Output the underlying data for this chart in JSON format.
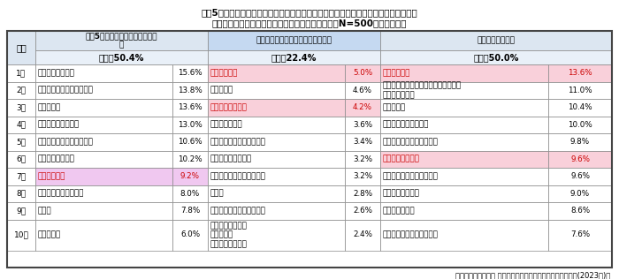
{
  "title_line1": "直近5年程度で、家事を楽にするために取り入れた、新たに購入した家電や設備の有無",
  "title_line2": "また、現在欲しいと思っている家電や設備の有無（N=500・複数回答）",
  "footer": "積水ハウス株式会社 住生活研究所「年始に向けた大掃除調査(2023年)」",
  "col1_header": "直近5年程度で購入した家電や設\n備",
  "col2_header": "これから購入予定のある家電や設備",
  "col3_header": "欲しい家電や設備",
  "col1_sub": "ある：50.4%",
  "col2_sub": "ある：22.4%",
  "col3_sub": "ある：50.0%",
  "rank_label": "順位",
  "rows": [
    {
      "rank": "1位",
      "col1_item": "コードレス掃除機",
      "col1_val": "15.6%",
      "col2_item": "掃除ロボット",
      "col2_val": "5.0%",
      "col3_item": "掃除ロボット",
      "col3_val": "13.6%",
      "col1_highlight": false,
      "col2_highlight": true,
      "col3_highlight": true
    },
    {
      "rank": "2位",
      "col1_item": "自動洗浄機能付きエアコン",
      "col1_val": "13.8%",
      "col2_item": "高圧洗浄機",
      "col2_val": "4.6%",
      "col3_item": "お掃除不要（自動洗浄機能付きなど）\nのレンジフード",
      "col3_val": "11.0%",
      "col1_highlight": false,
      "col2_highlight": false,
      "col3_highlight": false
    },
    {
      "rank": "3位",
      "col1_item": "食器洗浄機",
      "col1_val": "13.6%",
      "col2_item": "コードレス掃除機",
      "col2_val": "4.2%",
      "col3_item": "高圧洗浄機",
      "col3_val": "10.4%",
      "col1_highlight": false,
      "col2_highlight": true,
      "col3_highlight": false
    },
    {
      "rank": "4位",
      "col1_item": "スティック型掃除機",
      "col1_val": "13.0%",
      "col2_item": "布団クリーナー",
      "col2_val": "3.6%",
      "col3_item": "汚れが付きにくい便器",
      "col3_val": "10.0%",
      "col1_highlight": false,
      "col2_highlight": false,
      "col3_highlight": false
    },
    {
      "rank": "5位",
      "col1_item": "ドラム式乾燥機付き洗濯機",
      "col1_val": "10.6%",
      "col2_item": "自動洗浄機能付きエアコン",
      "col2_val": "3.4%",
      "col3_item": "掃除の回数が減るバスタブ",
      "col3_val": "9.8%",
      "col1_highlight": false,
      "col2_highlight": false,
      "col3_highlight": false
    },
    {
      "rank": "6位",
      "col1_item": "サーキュレーター",
      "col1_val": "10.2%",
      "col2_item": "スティック型掃除機",
      "col2_val": "3.2%",
      "col3_item": "コードレス掃除機",
      "col3_val": "9.6%",
      "col1_highlight": false,
      "col2_highlight": false,
      "col3_highlight": true
    },
    {
      "rank": "7位",
      "col1_item": "掃除ロボット",
      "col1_val": "9.2%",
      "col2_item": "自動調理鍋（電気圧力鍋）",
      "col2_val": "3.2%",
      "col3_item": "掃除の回数が減る浴室の床",
      "col3_val": "9.6%",
      "col1_highlight": true,
      "col2_highlight": false,
      "col3_highlight": false
    },
    {
      "rank": "8位",
      "col1_item": "汚れが付きにくい便器",
      "col1_val": "8.0%",
      "col2_item": "除湿器",
      "col2_val": "2.8%",
      "col3_item": "雑巾がけロボット",
      "col3_val": "9.0%",
      "col1_highlight": false,
      "col2_highlight": false,
      "col3_highlight": false
    },
    {
      "rank": "9位",
      "col1_item": "除湿器",
      "col1_val": "7.8%",
      "col2_item": "ドラム式乾燥機付き洗濯機",
      "col2_val": "2.6%",
      "col3_item": "布団クリーナー",
      "col3_val": "8.6%",
      "col1_highlight": false,
      "col2_highlight": false,
      "col3_highlight": false
    },
    {
      "rank": "10位",
      "col1_item": "高圧洗浄機",
      "col1_val": "6.0%",
      "col2_item": "雑巾がけロボット\n食器洗浄機\nサーキュレーター",
      "col2_val": "2.4%",
      "col3_item": "自動洗浄機能付きエアコン",
      "col3_val": "7.6%",
      "col1_highlight": false,
      "col2_highlight": false,
      "col3_highlight": false
    }
  ],
  "colors": {
    "header_bg_light_blue": "#dce6f1",
    "header_bg_medium_blue": "#b8cce4",
    "header_bg_dark": "#1f3864",
    "highlight_pink": "#f2b8c6",
    "highlight_lavender": "#e2b0e2",
    "rank_col_bg": "#f0f0f0",
    "border": "#888888",
    "text_dark": "#000000",
    "text_highlight_pink": "#cc0000",
    "white": "#ffffff",
    "col1_header_bg": "#dce6f1",
    "col2_header_bg": "#c5d9f1",
    "col3_header_bg": "#dce6f1",
    "sub_row_bg": "#e9f0f8"
  }
}
